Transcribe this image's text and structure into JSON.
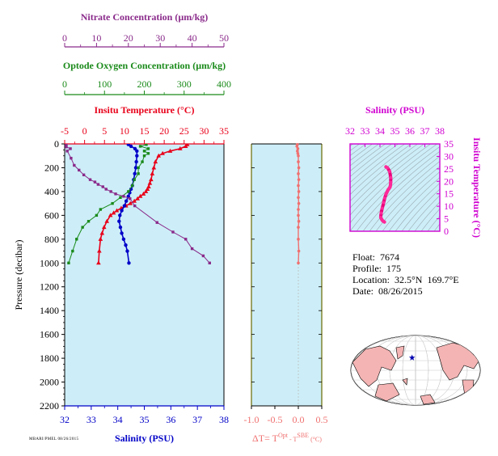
{
  "colors": {
    "nitrate": "#8a2a8a",
    "oxygen": "#1a8a1a",
    "temperature": "#e8001a",
    "salinity": "#0000c8",
    "delta_t": "#f07070",
    "ts_axis": "#d000d0",
    "panel_bg": "#cdeef8",
    "land": "#f4b4b4"
  },
  "info": {
    "float": "Float:  7674",
    "profile": "Profile:  175",
    "location": "Location:  32.5°N  169.7°E",
    "date": "Date:  08/26/2015"
  },
  "footer": "MBARI/PMEL 08/26/2015",
  "chart_data": [
    {
      "type": "line",
      "panel": "profile",
      "ylabel": "Pressure (decibar)",
      "ylim": [
        2200,
        0
      ],
      "yticks": [
        0,
        200,
        400,
        600,
        800,
        1000,
        1200,
        1400,
        1600,
        1800,
        2000,
        2200
      ],
      "axes": [
        {
          "label": "Salinity (PSU)",
          "range": [
            32,
            38
          ],
          "ticks": [
            "32",
            "33",
            "34",
            "35",
            "36",
            "37",
            "38"
          ]
        },
        {
          "label": "Insitu Temperature (°C)",
          "range": [
            -5,
            35
          ],
          "ticks": [
            "-5",
            "0",
            "5",
            "10",
            "15",
            "20",
            "25",
            "30",
            "35"
          ]
        },
        {
          "label": "Optode Oxygen Concentration (µm/kg)",
          "range": [
            0,
            400
          ],
          "ticks": [
            "0",
            "100",
            "200",
            "300",
            "400"
          ]
        },
        {
          "label": "Nitrate Concentration (µm/kg)",
          "range": [
            0,
            50
          ],
          "ticks": [
            "0",
            "10",
            "20",
            "30",
            "40",
            "50"
          ]
        }
      ],
      "series": [
        {
          "variable": "temperature",
          "x": [
            25.8,
            25.4,
            24.0,
            21.5,
            19.6,
            18.6,
            17.8,
            17.4,
            17.0,
            16.7,
            16.4,
            16.1,
            15.8,
            15.4,
            14.8,
            14.0,
            13.3,
            12.5,
            11.5,
            10.4,
            9.2,
            8.1,
            7.3,
            6.5,
            5.6,
            4.9,
            4.4,
            4.0,
            3.7,
            3.5
          ],
          "y": [
            5,
            20,
            40,
            60,
            80,
            100,
            150,
            200,
            250,
            300,
            330,
            360,
            380,
            400,
            420,
            440,
            460,
            480,
            500,
            520,
            540,
            560,
            580,
            600,
            650,
            700,
            750,
            800,
            900,
            1000
          ]
        },
        {
          "variable": "salinity",
          "x": [
            34.4,
            34.5,
            34.65,
            34.72,
            34.72,
            34.7,
            34.68,
            34.64,
            34.6,
            34.55,
            34.5,
            34.45,
            34.4,
            34.32,
            34.25,
            34.15,
            34.08,
            34.05,
            34.1,
            34.15,
            34.22,
            34.3,
            34.36,
            34.42
          ],
          "y": [
            5,
            20,
            40,
            60,
            100,
            150,
            200,
            250,
            300,
            350,
            380,
            410,
            440,
            480,
            520,
            560,
            600,
            650,
            700,
            750,
            800,
            850,
            900,
            1000
          ]
        },
        {
          "variable": "oxygen",
          "x": [
            205,
            190,
            210,
            200,
            210,
            200,
            195,
            185,
            185,
            175,
            170,
            160,
            140,
            120,
            90,
            80,
            60,
            45,
            30,
            20,
            10
          ],
          "y": [
            5,
            20,
            40,
            60,
            80,
            100,
            150,
            200,
            250,
            300,
            350,
            400,
            450,
            500,
            550,
            600,
            650,
            700,
            800,
            900,
            1000
          ]
        },
        {
          "variable": "nitrate",
          "x": [
            0.5,
            0.5,
            1.8,
            0.8,
            2.0,
            3.0,
            4.5,
            6.0,
            8.0,
            9.5,
            10.5,
            12.0,
            13.0,
            14.5,
            16.0,
            18.5,
            20.5,
            22.0,
            29.0,
            34.0,
            38.0,
            40.0,
            43.5,
            45.5
          ],
          "y": [
            10,
            25,
            40,
            60,
            120,
            180,
            220,
            260,
            300,
            320,
            340,
            360,
            380,
            400,
            420,
            440,
            460,
            520,
            660,
            740,
            800,
            880,
            940,
            1000
          ]
        }
      ]
    },
    {
      "type": "line",
      "panel": "delta_t",
      "xlabel": "ΔT= T",
      "xlabel_sup1": "Opt",
      "xlabel_mid": " - T",
      "xlabel_sup2": "SBE",
      "xlabel_unit": " (°C)",
      "xlim": [
        -1.0,
        0.5
      ],
      "xticks": [
        "-1.0",
        "-0.5",
        "0.0",
        "0.5"
      ],
      "ylim": [
        2200,
        0
      ],
      "x": [
        -0.02,
        -0.03,
        -0.01,
        -0.02,
        -0.01,
        0.0,
        0.0,
        0.01,
        0.0,
        0.01,
        0.0,
        0.01,
        0.0,
        0.01,
        0.0,
        0.0,
        0.01,
        0.0,
        0.0,
        0.01,
        0.0
      ],
      "y": [
        5,
        20,
        40,
        60,
        80,
        100,
        150,
        200,
        250,
        300,
        350,
        400,
        450,
        500,
        550,
        600,
        650,
        700,
        800,
        900,
        1000
      ]
    },
    {
      "type": "scatter",
      "panel": "ts",
      "xlabel": "Salinity (PSU)",
      "ylabel": "Insitu Temperature (°C)",
      "xlim": [
        32,
        38
      ],
      "ylim": [
        0,
        35
      ],
      "xticks": [
        "32",
        "33",
        "34",
        "35",
        "36",
        "37",
        "38"
      ],
      "yticks": [
        "0",
        "5",
        "10",
        "15",
        "20",
        "25",
        "30",
        "35"
      ],
      "x": [
        34.4,
        34.5,
        34.65,
        34.72,
        34.72,
        34.7,
        34.68,
        34.64,
        34.6,
        34.55,
        34.5,
        34.45,
        34.4,
        34.32,
        34.25,
        34.15,
        34.08,
        34.05,
        34.1,
        34.15,
        34.22,
        34.3
      ],
      "y": [
        25.8,
        25.4,
        24.0,
        21.5,
        19.6,
        18.6,
        17.8,
        17.4,
        17.0,
        16.7,
        16.1,
        15.4,
        14.8,
        13.3,
        11.5,
        9.2,
        7.3,
        5.6,
        4.9,
        4.4,
        4.0,
        3.7
      ]
    },
    {
      "type": "map",
      "panel": "location",
      "lon_center": 180,
      "marker": {
        "lat": 32.5,
        "lon": 169.7
      }
    }
  ]
}
